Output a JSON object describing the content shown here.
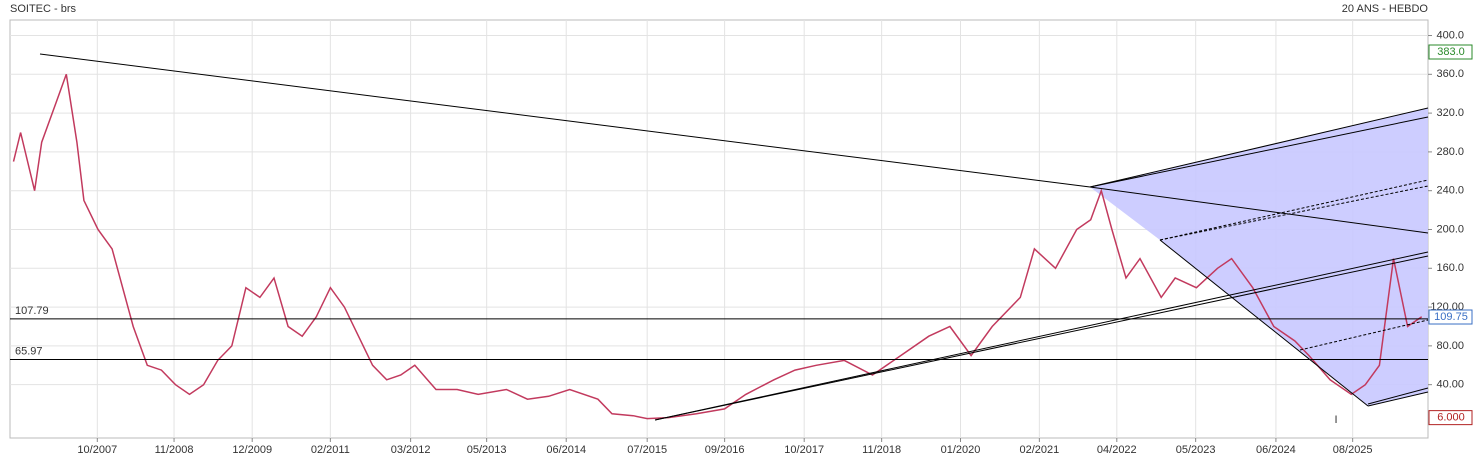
{
  "chart_data": {
    "type": "line",
    "title": "SOITEC - brs",
    "subtitle": "20 ANS - HEBDO",
    "annotation": "I",
    "color": "#c23a5e",
    "x": [
      2006.6,
      2006.7,
      2006.9,
      2007.0,
      2007.2,
      2007.35,
      2007.5,
      2007.6,
      2007.8,
      2008.0,
      2008.3,
      2008.5,
      2008.7,
      2008.9,
      2009.1,
      2009.3,
      2009.5,
      2009.7,
      2009.9,
      2010.1,
      2010.3,
      2010.5,
      2010.7,
      2010.9,
      2011.1,
      2011.3,
      2011.5,
      2011.7,
      2011.9,
      2012.1,
      2012.3,
      2012.6,
      2012.9,
      2013.2,
      2013.6,
      2013.9,
      2014.2,
      2014.5,
      2014.9,
      2015.1,
      2015.4,
      2015.6,
      2015.9,
      2016.3,
      2016.7,
      2017.0,
      2017.4,
      2017.7,
      2018.0,
      2018.4,
      2018.8,
      2019.2,
      2019.6,
      2019.9,
      2020.2,
      2020.5,
      2020.9,
      2021.1,
      2021.4,
      2021.7,
      2021.9,
      2022.05,
      2022.2,
      2022.4,
      2022.6,
      2022.9,
      2023.1,
      2023.4,
      2023.7,
      2023.9,
      2024.2,
      2024.5,
      2024.8,
      2025.0,
      2025.3,
      2025.6,
      2025.8,
      2026.0,
      2026.2,
      2026.4,
      2026.6
    ],
    "values": [
      270,
      300,
      240,
      290,
      330,
      360,
      290,
      230,
      200,
      180,
      100,
      60,
      55,
      40,
      30,
      40,
      65,
      80,
      140,
      130,
      150,
      100,
      90,
      110,
      140,
      120,
      90,
      60,
      45,
      50,
      60,
      35,
      35,
      30,
      35,
      25,
      28,
      35,
      25,
      10,
      8,
      5,
      6,
      10,
      15,
      30,
      45,
      55,
      60,
      65,
      50,
      70,
      90,
      100,
      70,
      100,
      130,
      180,
      160,
      200,
      210,
      240,
      200,
      150,
      170,
      130,
      150,
      140,
      160,
      170,
      140,
      100,
      85,
      70,
      45,
      30,
      40,
      60,
      170,
      100,
      110
    ],
    "xlim": [
      2006.55,
      2026.69
    ],
    "ylim": [
      -15,
      416
    ],
    "xticks": [
      {
        "value": 2007.79,
        "label": "10/2007"
      },
      {
        "value": 2008.88,
        "label": "11/2008"
      },
      {
        "value": 2009.99,
        "label": "12/2009"
      },
      {
        "value": 2011.1,
        "label": "02/2011"
      },
      {
        "value": 2012.24,
        "label": "03/2012"
      },
      {
        "value": 2013.32,
        "label": "05/2013"
      },
      {
        "value": 2014.45,
        "label": "06/2014"
      },
      {
        "value": 2015.6,
        "label": "07/2015"
      },
      {
        "value": 2016.7,
        "label": "09/2016"
      },
      {
        "value": 2017.83,
        "label": "10/2017"
      },
      {
        "value": 2018.93,
        "label": "11/2018"
      },
      {
        "value": 2020.05,
        "label": "01/2020"
      },
      {
        "value": 2021.17,
        "label": "02/2021"
      },
      {
        "value": 2022.27,
        "label": "04/2022"
      },
      {
        "value": 2023.39,
        "label": "05/2023"
      },
      {
        "value": 2024.53,
        "label": "06/2024"
      },
      {
        "value": 2025.62,
        "label": "08/2025"
      }
    ],
    "yticks": [
      {
        "value": 40,
        "label": "40.00"
      },
      {
        "value": 80,
        "label": "80.00"
      },
      {
        "value": 120,
        "label": "120.00"
      },
      {
        "value": 160,
        "label": "160.0"
      },
      {
        "value": 200,
        "label": "200.0"
      },
      {
        "value": 240,
        "label": "240.0"
      },
      {
        "value": 280,
        "label": "280.0"
      },
      {
        "value": 320,
        "label": "320.0"
      },
      {
        "value": 360,
        "label": "360.0"
      },
      {
        "value": 400,
        "label": "400.0"
      }
    ],
    "levels": [
      107.79,
      65.97
    ],
    "badges": [
      {
        "value": 383,
        "label": "383.0",
        "color": "#2a8a2a"
      },
      {
        "value": 109.75,
        "color": "#3a6fc4"
      },
      {
        "value": 6,
        "label": "6.000",
        "color": "#b22222"
      }
    ],
    "grid": true
  }
}
